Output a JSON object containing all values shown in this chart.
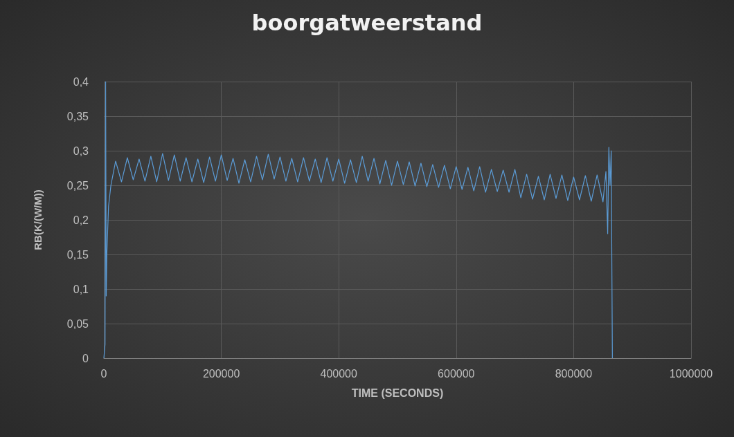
{
  "chart_data": {
    "type": "line",
    "title": "boorgatweerstand",
    "xlabel": "TIME (SECONDS)",
    "ylabel": "RB(K/(W/M))",
    "xlim": [
      0,
      1000000
    ],
    "xticks": [
      0,
      200000,
      400000,
      600000,
      800000,
      1000000
    ],
    "ylim": [
      0,
      0.4
    ],
    "yticks": [
      0,
      {
        "value": 0.05,
        "label": "0,05"
      },
      {
        "value": 0.1,
        "label": "0,1"
      },
      {
        "value": 0.15,
        "label": "0,15"
      },
      {
        "value": 0.2,
        "label": "0,2"
      },
      {
        "value": 0.25,
        "label": "0,25"
      },
      {
        "value": 0.3,
        "label": "0,3"
      },
      {
        "value": 0.35,
        "label": "0,35"
      },
      {
        "value": 0.4,
        "label": "0,4"
      }
    ],
    "grid": true,
    "marker": "none",
    "line_style": "solid",
    "series": [
      {
        "color": "#5b9bd5",
        "x": [
          0,
          2000,
          3000,
          4000,
          5000,
          8000,
          12000,
          20000,
          30000,
          40000,
          50000,
          60000,
          70000,
          80000,
          90000,
          100000,
          110000,
          120000,
          130000,
          140000,
          150000,
          160000,
          170000,
          180000,
          190000,
          200000,
          210000,
          220000,
          230000,
          240000,
          250000,
          260000,
          270000,
          280000,
          290000,
          300000,
          310000,
          320000,
          330000,
          340000,
          350000,
          360000,
          370000,
          380000,
          390000,
          400000,
          410000,
          420000,
          430000,
          440000,
          450000,
          460000,
          470000,
          480000,
          490000,
          500000,
          510000,
          520000,
          530000,
          540000,
          550000,
          560000,
          570000,
          580000,
          590000,
          600000,
          610000,
          620000,
          630000,
          640000,
          650000,
          660000,
          670000,
          680000,
          690000,
          700000,
          710000,
          720000,
          730000,
          740000,
          750000,
          760000,
          770000,
          780000,
          790000,
          800000,
          810000,
          820000,
          830000,
          840000,
          850000,
          855000,
          858000,
          860000,
          862000,
          864000,
          866000
        ],
        "values": [
          0,
          0.02,
          0.4,
          0.09,
          0.15,
          0.22,
          0.25,
          0.285,
          0.255,
          0.29,
          0.258,
          0.288,
          0.256,
          0.292,
          0.255,
          0.296,
          0.257,
          0.294,
          0.256,
          0.29,
          0.255,
          0.288,
          0.254,
          0.291,
          0.256,
          0.294,
          0.257,
          0.289,
          0.253,
          0.287,
          0.255,
          0.292,
          0.258,
          0.295,
          0.259,
          0.291,
          0.256,
          0.289,
          0.255,
          0.29,
          0.256,
          0.288,
          0.254,
          0.29,
          0.256,
          0.288,
          0.253,
          0.287,
          0.254,
          0.292,
          0.256,
          0.289,
          0.252,
          0.286,
          0.25,
          0.285,
          0.251,
          0.284,
          0.249,
          0.282,
          0.248,
          0.28,
          0.247,
          0.279,
          0.245,
          0.277,
          0.244,
          0.276,
          0.242,
          0.277,
          0.24,
          0.273,
          0.241,
          0.272,
          0.24,
          0.273,
          0.232,
          0.266,
          0.23,
          0.263,
          0.229,
          0.266,
          0.231,
          0.265,
          0.228,
          0.262,
          0.229,
          0.264,
          0.227,
          0.265,
          0.226,
          0.27,
          0.18,
          0.305,
          0.25,
          0.3,
          0
        ]
      }
    ]
  }
}
